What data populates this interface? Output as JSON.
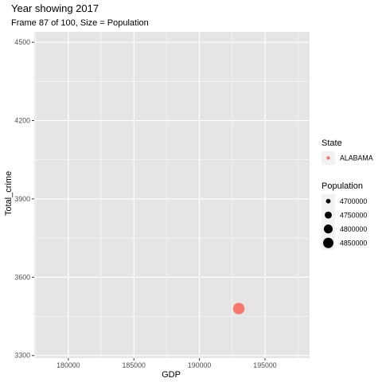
{
  "chart_data": {
    "type": "scatter",
    "title": "Year showing 2017",
    "subtitle": "Frame 87 of 100, Size = Population",
    "xlabel": "GDP",
    "ylabel": "Total_crime",
    "xlim": [
      177400,
      198400
    ],
    "ylim": [
      3290,
      4540
    ],
    "x_ticks": [
      180000,
      185000,
      190000,
      195000
    ],
    "y_ticks": [
      3300,
      3600,
      3900,
      4200,
      4500
    ],
    "grid": true,
    "legend_position": "right",
    "points": [
      {
        "state": "ALABAMA",
        "x": 193000,
        "y": 3480,
        "population": 4870000
      }
    ],
    "legends": {
      "color": {
        "title": "State",
        "items": [
          {
            "label": "ALABAMA",
            "color": "#F8766D"
          }
        ]
      },
      "size": {
        "title": "Population",
        "items": [
          {
            "label": "4700000",
            "value": 4700000
          },
          {
            "label": "4750000",
            "value": 4750000
          },
          {
            "label": "4800000",
            "value": 4800000
          },
          {
            "label": "4850000",
            "value": 4850000
          }
        ],
        "range": [
          4690000,
          4870000
        ]
      }
    },
    "colors": {
      "point": "#F8766D",
      "panel": "#E5E5E5",
      "grid": "#FFFFFF"
    }
  }
}
